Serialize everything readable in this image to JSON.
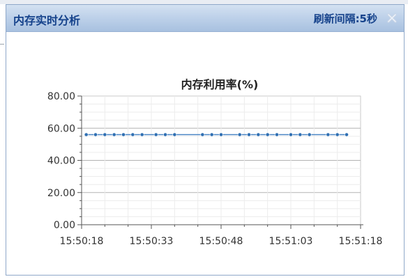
{
  "window": {
    "title": "内存实时分析",
    "refresh_label": "刷新间隔:5秒"
  },
  "icons": {
    "close": "close-icon"
  },
  "colors": {
    "line": "#4a86c5",
    "point": "#2f6fb2",
    "title_text": "#15428b"
  },
  "chart_data": {
    "type": "line",
    "title": "内存利用率(%)",
    "xlabel": "",
    "ylabel": "",
    "ylim": [
      0,
      80
    ],
    "yticks": [
      "0.00",
      "20.00",
      "40.00",
      "60.00",
      "80.00"
    ],
    "xticks": [
      "15:50:18",
      "15:50:33",
      "15:50:48",
      "15:51:03",
      "15:51:18"
    ],
    "xlim_seconds_from_first_tick": [
      0,
      60
    ],
    "grid": true,
    "legend": "none",
    "series": [
      {
        "x": [
          "15:50:19",
          "15:50:21",
          "15:50:23",
          "15:50:25",
          "15:50:27",
          "15:50:29",
          "15:50:31",
          "15:50:34",
          "15:50:36",
          "15:50:38",
          "15:50:44",
          "15:50:46",
          "15:50:48",
          "15:50:52",
          "15:50:54",
          "15:50:56",
          "15:50:58",
          "15:51:00",
          "15:51:03",
          "15:51:05",
          "15:51:07",
          "15:51:11",
          "15:51:13",
          "15:51:15"
        ],
        "values": [
          56,
          56,
          56,
          56,
          56,
          56,
          56,
          56,
          56,
          56,
          56,
          56,
          56,
          56,
          56,
          56,
          56,
          56,
          56,
          56,
          56,
          56,
          56,
          56
        ]
      }
    ]
  }
}
